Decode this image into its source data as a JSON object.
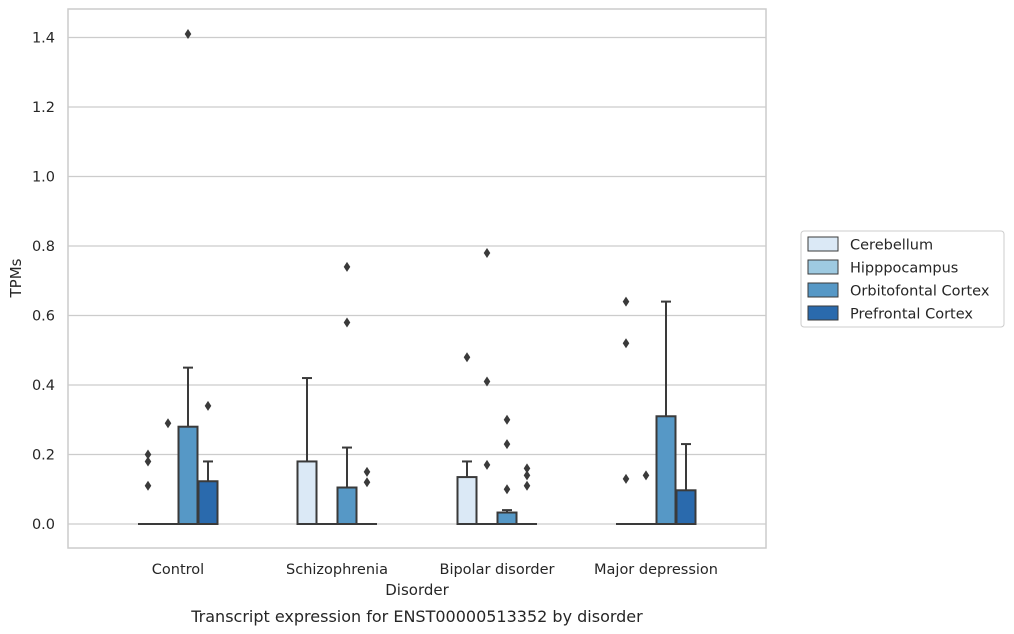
{
  "caption": "Transcript expression for ENST00000513352 by disorder",
  "chart_data": {
    "type": "box",
    "title": "",
    "xlabel": "Disorder",
    "ylabel": "TPMs",
    "ylim": [
      -0.07,
      1.48
    ],
    "yticks": [
      "0.0",
      "0.2",
      "0.4",
      "0.6",
      "0.8",
      "1.0",
      "1.2",
      "1.4"
    ],
    "categories": [
      "Control",
      "Schizophrenia",
      "Bipolar disorder",
      "Major depression"
    ],
    "grid": true,
    "legend_position": "right",
    "series": [
      {
        "name": "Cerebellum",
        "color": "#dbe9f6",
        "boxes": [
          {
            "q1": 0,
            "median": 0,
            "q3": 0,
            "whisker_low": 0,
            "whisker_high": 0,
            "outliers": [
              0.11,
              0.18,
              0.2
            ]
          },
          {
            "q1": 0,
            "median": 0,
            "q3": 0.18,
            "whisker_low": 0,
            "whisker_high": 0.42,
            "outliers": []
          },
          {
            "q1": 0,
            "median": 0,
            "q3": 0.135,
            "whisker_low": 0,
            "whisker_high": 0.18,
            "outliers": [
              0.48
            ]
          },
          {
            "q1": 0,
            "median": 0,
            "q3": 0,
            "whisker_low": 0,
            "whisker_high": 0,
            "outliers": [
              0.13,
              0.52,
              0.64
            ]
          }
        ]
      },
      {
        "name": "Hipppocampus",
        "color": "#9ecae1",
        "boxes": [
          {
            "q1": 0,
            "median": 0,
            "q3": 0,
            "whisker_low": 0,
            "whisker_high": 0,
            "outliers": [
              0.29
            ]
          },
          {
            "q1": 0,
            "median": 0,
            "q3": 0,
            "whisker_low": 0,
            "whisker_high": 0,
            "outliers": []
          },
          {
            "q1": 0,
            "median": 0,
            "q3": 0,
            "whisker_low": 0,
            "whisker_high": 0,
            "outliers": [
              0.17,
              0.41,
              0.78
            ]
          },
          {
            "q1": 0,
            "median": 0,
            "q3": 0,
            "whisker_low": 0,
            "whisker_high": 0,
            "outliers": [
              0.14
            ]
          }
        ]
      },
      {
        "name": "Orbitofontal Cortex",
        "color": "#5698c6",
        "boxes": [
          {
            "q1": 0,
            "median": 0,
            "q3": 0.28,
            "whisker_low": 0,
            "whisker_high": 0.45,
            "outliers": [
              1.41
            ]
          },
          {
            "q1": 0,
            "median": 0,
            "q3": 0.105,
            "whisker_low": 0,
            "whisker_high": 0.22,
            "outliers": [
              0.58,
              0.74
            ]
          },
          {
            "q1": 0,
            "median": 0,
            "q3": 0.033,
            "whisker_low": 0,
            "whisker_high": 0.04,
            "outliers": [
              0.1,
              0.23,
              0.3
            ]
          },
          {
            "q1": 0,
            "median": 0,
            "q3": 0.31,
            "whisker_low": 0,
            "whisker_high": 0.64,
            "outliers": []
          }
        ]
      },
      {
        "name": "Prefrontal Cortex",
        "color": "#2a6aad",
        "boxes": [
          {
            "q1": 0,
            "median": 0,
            "q3": 0.123,
            "whisker_low": 0,
            "whisker_high": 0.18,
            "outliers": [
              0.34
            ]
          },
          {
            "q1": 0,
            "median": 0,
            "q3": 0,
            "whisker_low": 0,
            "whisker_high": 0,
            "outliers": [
              0.12,
              0.15
            ]
          },
          {
            "q1": 0,
            "median": 0,
            "q3": 0,
            "whisker_low": 0,
            "whisker_high": 0,
            "outliers": [
              0.11,
              0.14,
              0.16
            ]
          },
          {
            "q1": 0,
            "median": 0,
            "q3": 0.097,
            "whisker_low": 0,
            "whisker_high": 0.23,
            "outliers": []
          }
        ]
      }
    ]
  }
}
